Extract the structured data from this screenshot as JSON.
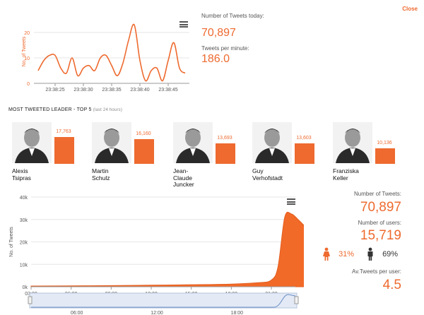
{
  "close_label": "Close",
  "top_chart": {
    "ylabel": "No. of Tweets",
    "yticks": [
      "20",
      "10",
      "0"
    ],
    "xticks": [
      "23:38:25",
      "23:38:30",
      "23:38:35",
      "23:38:40",
      "23:38:45"
    ]
  },
  "stats": {
    "tweets_today_label": "Number of Tweets today:",
    "tweets_today": "70,897",
    "tpm_label": "Tweets per minute:",
    "tpm": "186.0"
  },
  "leaders_section": {
    "title": "MOST TWEETED LEADER - TOP 5",
    "subtitle": "(last 24 hours)",
    "leaders": [
      {
        "name_line1": "Alexis",
        "name_line2": "Tsipras",
        "name_line3": "",
        "count_label": "17,763",
        "count": 17763
      },
      {
        "name_line1": "Martin",
        "name_line2": "Schulz",
        "name_line3": "",
        "count_label": "16,160",
        "count": 16160
      },
      {
        "name_line1": "Jean-",
        "name_line2": "Claude",
        "name_line3": "Juncker",
        "count_label": "13,693",
        "count": 13693
      },
      {
        "name_line1": "Guy",
        "name_line2": "Verhofstadt",
        "name_line3": "",
        "count_label": "13,603",
        "count": 13603
      },
      {
        "name_line1": "Franziska",
        "name_line2": "Keller",
        "name_line3": "",
        "count_label": "10,136",
        "count": 10136
      }
    ]
  },
  "big_chart": {
    "ylabel": "No. of Tweets",
    "yticks": [
      "40k",
      "30k",
      "20k",
      "10k",
      "0k"
    ],
    "xticks": [
      "03:00",
      "06:00",
      "09:00",
      "12:00",
      "15:00",
      "18:00",
      "21:00"
    ],
    "navigator_ticks": [
      "06:00",
      "12:00",
      "18:00"
    ]
  },
  "summary": {
    "tweets_label": "Number of Tweets:",
    "tweets": "70,897",
    "users_label": "Number of users:",
    "users": "15,719",
    "female_pct": "31%",
    "male_pct": "69%",
    "avg_label": "Av.Tweets per user:",
    "avg": "4.5"
  },
  "chart_data": [
    {
      "type": "line",
      "title": "",
      "xlabel": "",
      "ylabel": "No. of Tweets",
      "ylim": [
        0,
        25
      ],
      "x": [
        "23:38:22",
        "23:38:23",
        "23:38:24",
        "23:38:25",
        "23:38:26",
        "23:38:27",
        "23:38:28",
        "23:38:29",
        "23:38:30",
        "23:38:31",
        "23:38:32",
        "23:38:33",
        "23:38:34",
        "23:38:35",
        "23:38:36",
        "23:38:37",
        "23:38:38",
        "23:38:39",
        "23:38:40",
        "23:38:41",
        "23:38:42",
        "23:38:43",
        "23:38:44",
        "23:38:45",
        "23:38:46",
        "23:38:47",
        "23:38:48"
      ],
      "values": [
        5,
        9,
        11,
        11,
        6,
        4,
        10,
        3,
        6,
        7,
        5,
        10,
        11,
        7,
        3,
        8,
        17,
        23,
        9,
        1,
        5,
        6,
        1,
        9,
        16,
        6,
        4
      ]
    },
    {
      "type": "area",
      "title": "",
      "xlabel": "",
      "ylabel": "No. of Tweets",
      "ylim": [
        0,
        40000
      ],
      "x": [
        "03:00",
        "06:00",
        "09:00",
        "12:00",
        "15:00",
        "18:00",
        "20:00",
        "21:00",
        "21:30",
        "22:00",
        "22:30",
        "23:00",
        "23:30"
      ],
      "values": [
        300,
        400,
        500,
        700,
        900,
        1200,
        1800,
        3000,
        9000,
        31000,
        32500,
        30000,
        27000
      ]
    }
  ]
}
